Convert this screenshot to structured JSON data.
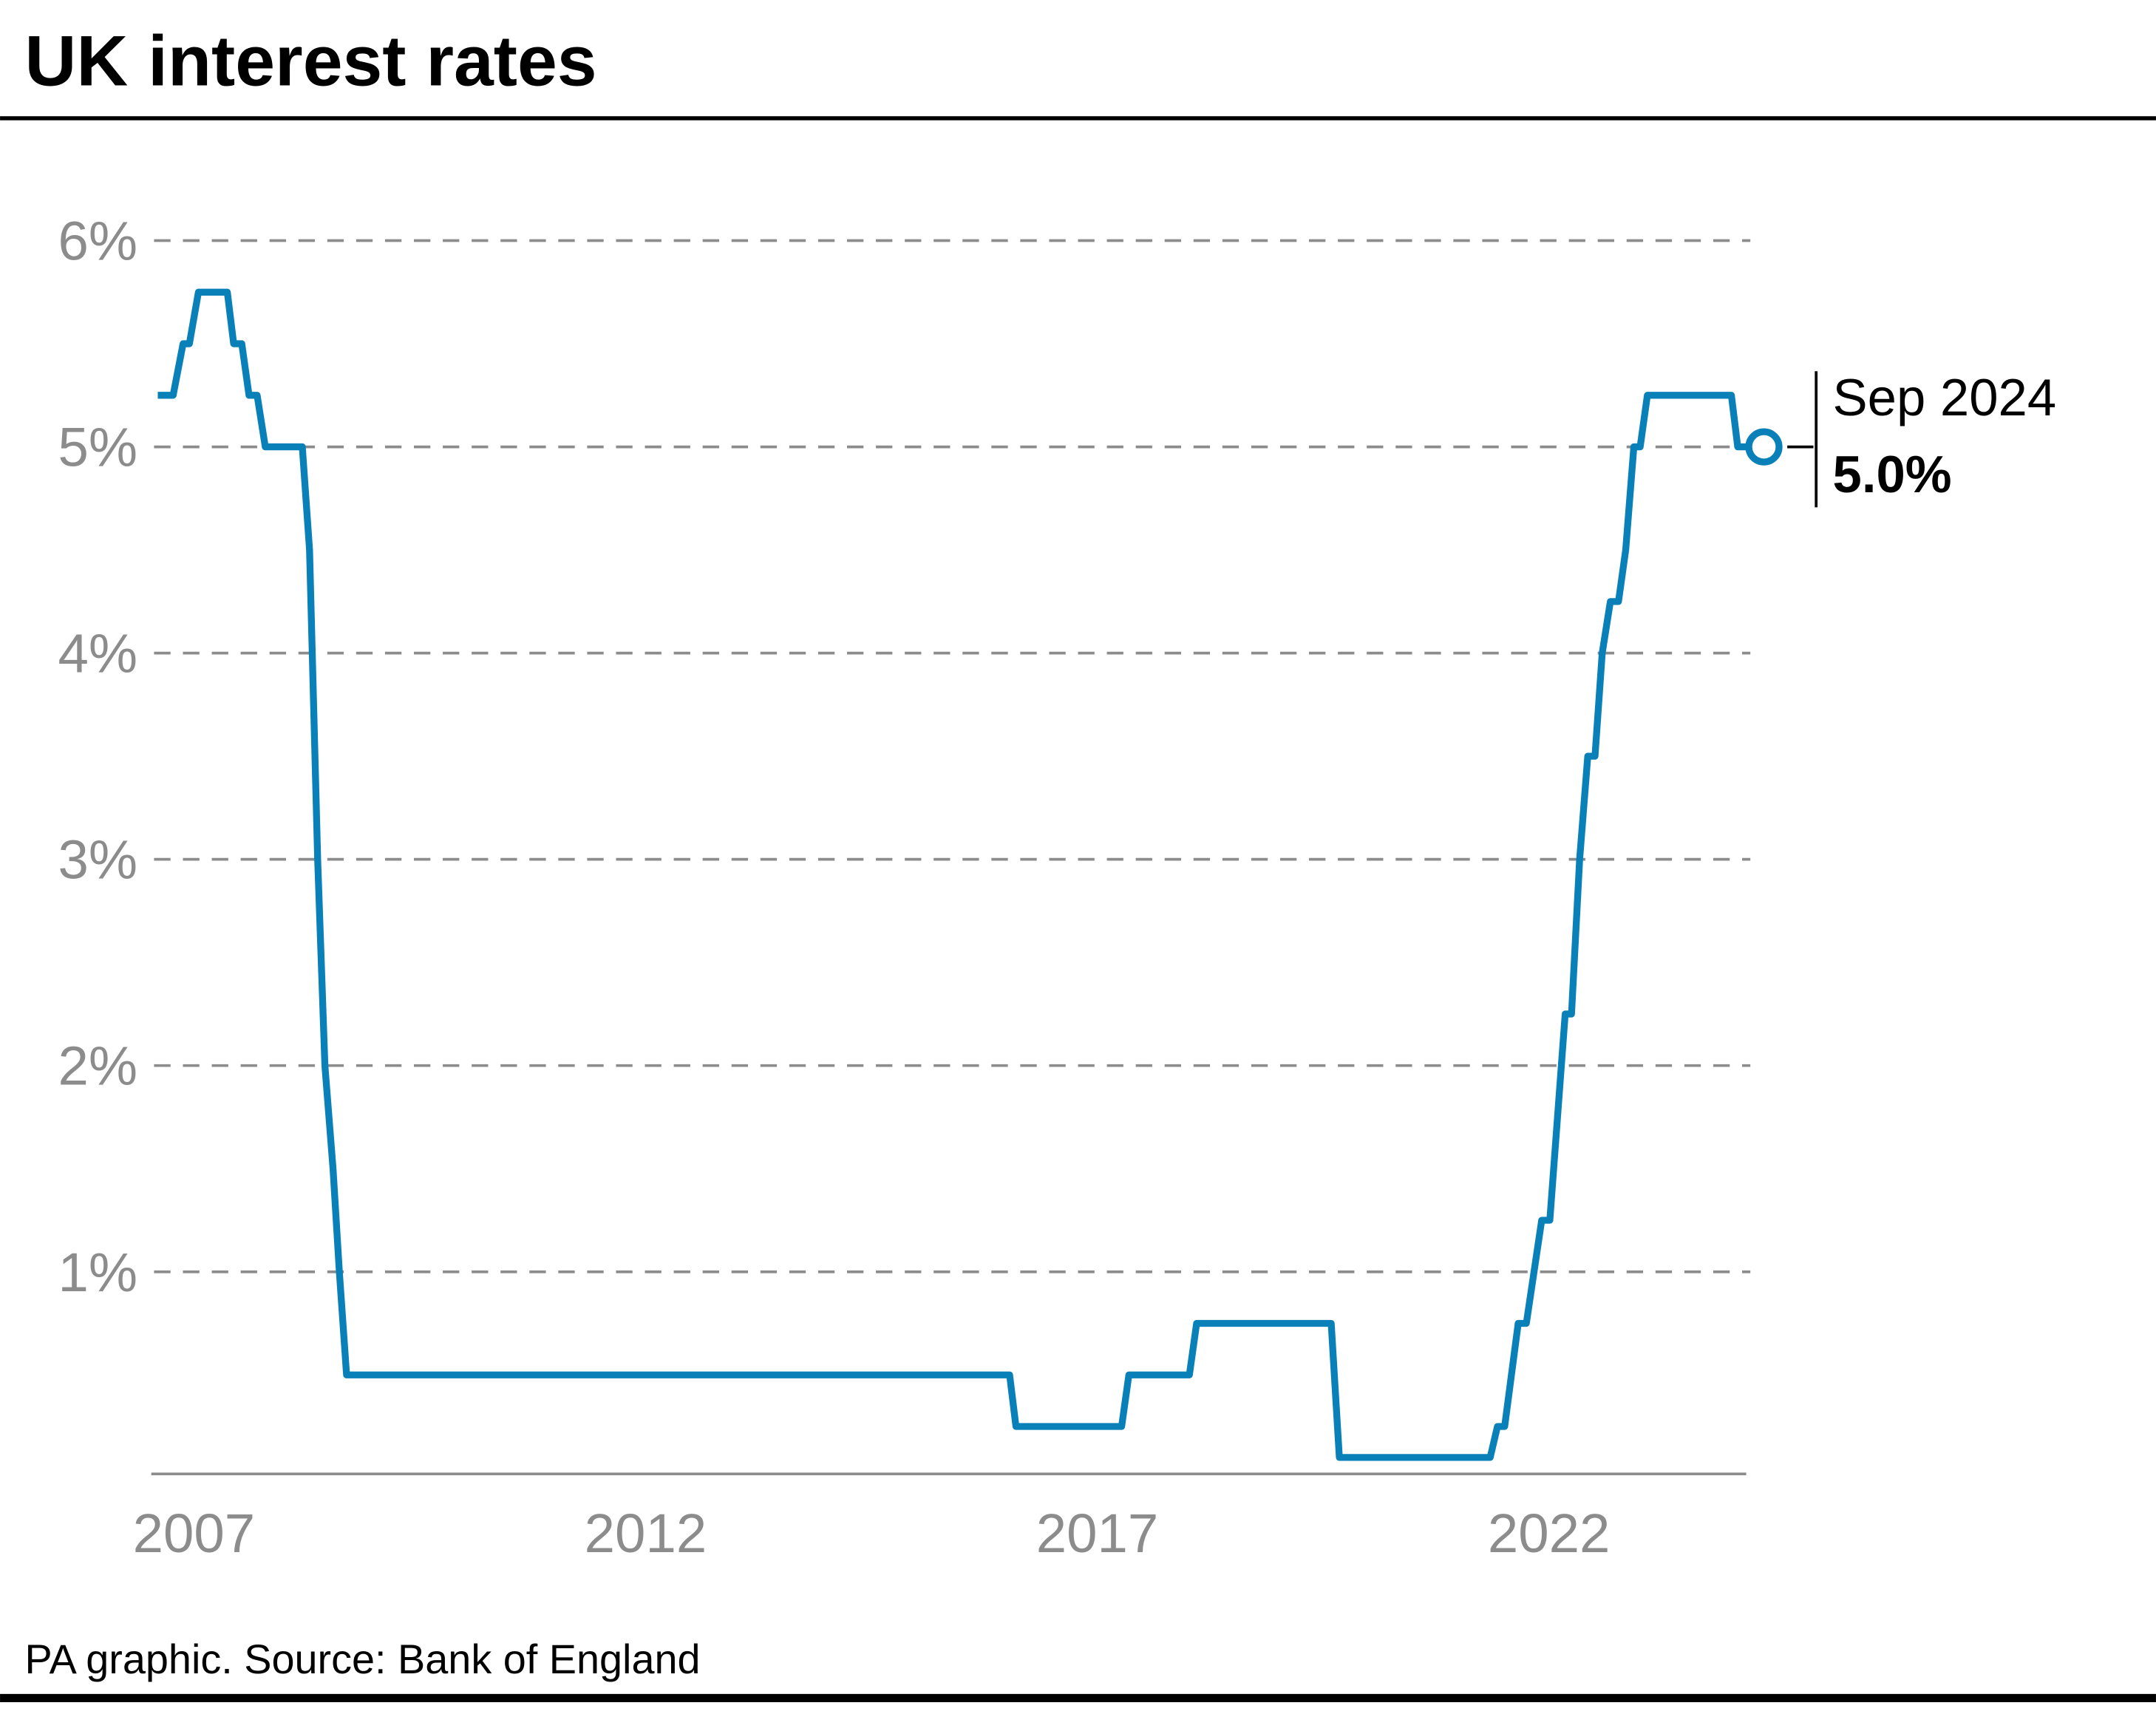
{
  "chart_data": {
    "type": "line",
    "title": "UK interest rates",
    "source": "PA graphic. Source: Bank of England",
    "color": "#0a80b9",
    "x": [
      2006.6,
      2006.77,
      2006.88,
      2006.95,
      2007.05,
      2007.37,
      2007.44,
      2007.53,
      2007.61,
      2007.7,
      2007.79,
      2008.2,
      2008.28,
      2008.37,
      2008.45,
      2008.54,
      2008.61,
      2008.69,
      2016.03,
      2016.1,
      2017.27,
      2017.35,
      2018.02,
      2018.1,
      2019.59,
      2019.68,
      2021.35,
      2021.43,
      2021.51,
      2021.66,
      2021.75,
      2021.92,
      2022.01,
      2022.18,
      2022.25,
      2022.34,
      2022.43,
      2022.51,
      2022.59,
      2022.68,
      2022.77,
      2022.85,
      2022.94,
      2023.01,
      2023.09,
      2024.02,
      2024.09,
      2024.38
    ],
    "values": [
      5.25,
      5.25,
      5.5,
      5.5,
      5.75,
      5.75,
      5.5,
      5.5,
      5.25,
      5.25,
      5.0,
      5.0,
      4.5,
      3.0,
      2.0,
      1.5,
      1.0,
      0.5,
      0.5,
      0.25,
      0.25,
      0.5,
      0.5,
      0.75,
      0.75,
      0.1,
      0.1,
      0.25,
      0.25,
      0.75,
      0.75,
      1.25,
      1.25,
      2.25,
      2.25,
      3.0,
      3.5,
      3.5,
      4.0,
      4.25,
      4.25,
      4.5,
      5.0,
      5.0,
      5.25,
      5.25,
      5.0,
      5.0
    ],
    "xlim": [
      2006.5,
      2024.5
    ],
    "xticks": [
      2007,
      2012,
      2017,
      2022
    ],
    "ylim": [
      0,
      6
    ],
    "yticks": [
      {
        "value": 1,
        "label": "1%"
      },
      {
        "value": 2,
        "label": "2%"
      },
      {
        "value": 3,
        "label": "3%"
      },
      {
        "value": 4,
        "label": "4%"
      },
      {
        "value": 5,
        "label": "5%"
      },
      {
        "value": 6,
        "label": "6%"
      }
    ],
    "grid": true,
    "end_annotation": {
      "date": "Sep 2024",
      "value_label": "5.0%"
    }
  }
}
